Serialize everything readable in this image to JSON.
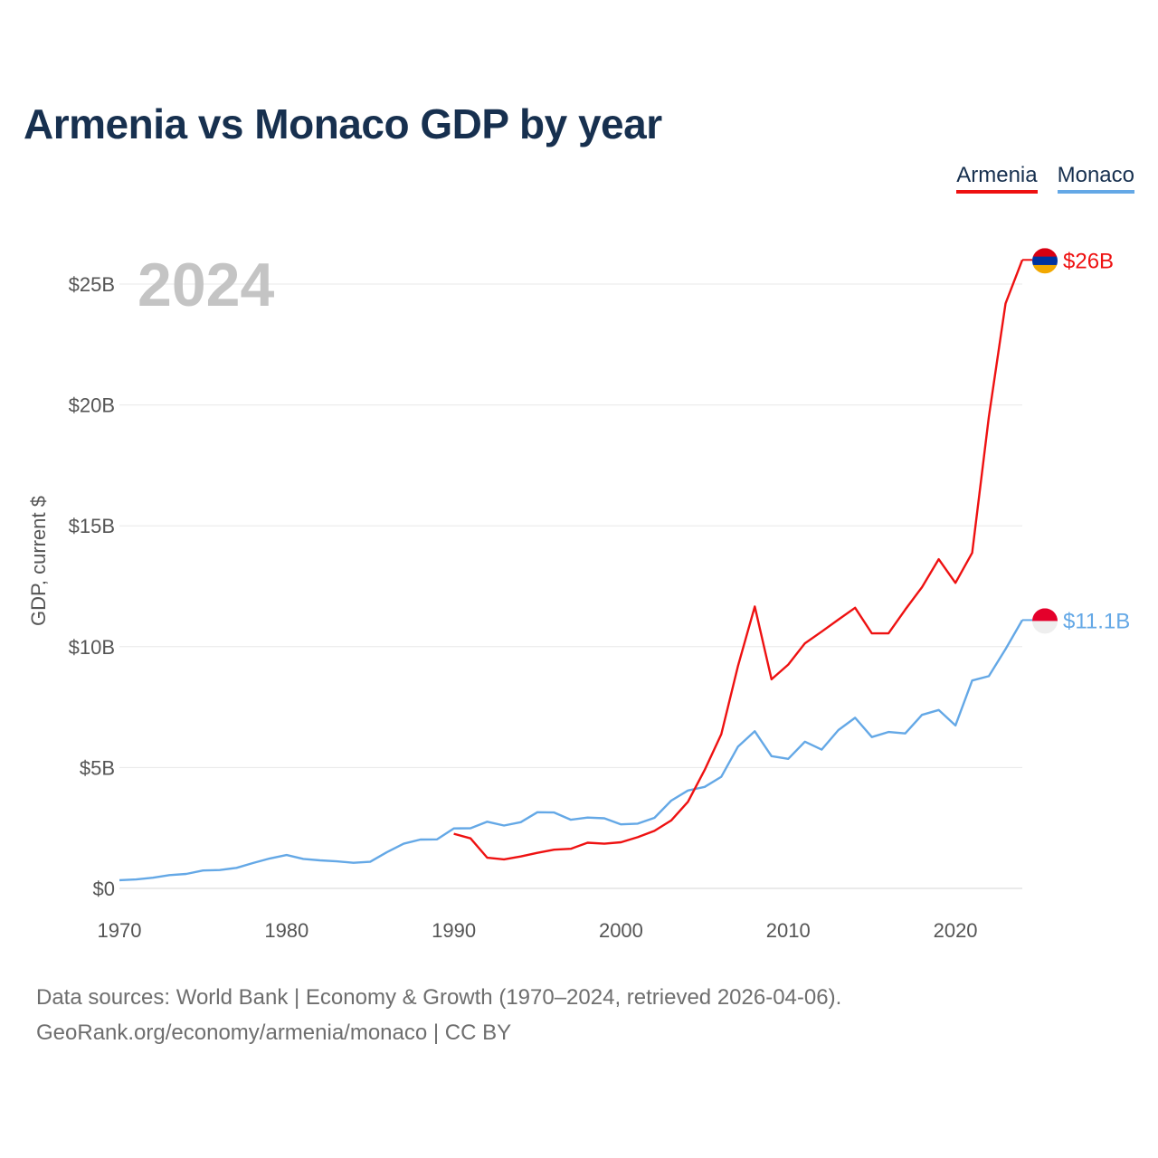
{
  "chart_data": {
    "type": "line",
    "title": "Armenia vs Monaco GDP by year",
    "xlabel": "",
    "ylabel": "GDP, current $",
    "xlim": [
      1970,
      2024
    ],
    "ylim": [
      0,
      26
    ],
    "x_ticks": [
      1970,
      1980,
      1990,
      2000,
      2010,
      2020
    ],
    "x_tick_labels": [
      "1970",
      "1980",
      "1990",
      "2000",
      "2010",
      "2020"
    ],
    "y_ticks": [
      0,
      5,
      10,
      15,
      20,
      25
    ],
    "y_tick_labels": [
      "$0",
      "$5B",
      "$10B",
      "$15B",
      "$20B",
      "$25B"
    ],
    "year_display": "2024",
    "legend_position": "top-right",
    "series": [
      {
        "name": "Armenia",
        "color": "#ee1111",
        "end_label": "$26B",
        "flag": "armenia-flag-icon",
        "flag_colors": [
          "#d90012",
          "#0033a0",
          "#f2a800"
        ],
        "x": [
          1990,
          1991,
          1992,
          1993,
          1994,
          1995,
          1996,
          1997,
          1998,
          1999,
          2000,
          2001,
          2002,
          2003,
          2004,
          2005,
          2006,
          2007,
          2008,
          2009,
          2010,
          2011,
          2012,
          2013,
          2014,
          2015,
          2016,
          2017,
          2018,
          2019,
          2020,
          2021,
          2022,
          2023,
          2024
        ],
        "values": [
          2.26,
          2.07,
          1.27,
          1.2,
          1.32,
          1.47,
          1.6,
          1.64,
          1.89,
          1.85,
          1.91,
          2.12,
          2.38,
          2.81,
          3.58,
          4.9,
          6.38,
          9.21,
          11.66,
          8.65,
          9.26,
          10.14,
          10.62,
          11.12,
          11.61,
          10.55,
          10.55,
          11.53,
          12.46,
          13.62,
          12.64,
          13.88,
          19.5,
          24.2,
          26.0
        ]
      },
      {
        "name": "Monaco",
        "color": "#64a8e6",
        "end_label": "$11.1B",
        "flag": "monaco-flag-icon",
        "flag_colors": [
          "#e4002b",
          "#eeeeee"
        ],
        "x": [
          1970,
          1971,
          1972,
          1973,
          1974,
          1975,
          1976,
          1977,
          1978,
          1979,
          1980,
          1981,
          1982,
          1983,
          1984,
          1985,
          1986,
          1987,
          1988,
          1989,
          1990,
          1991,
          1992,
          1993,
          1994,
          1995,
          1996,
          1997,
          1998,
          1999,
          2000,
          2001,
          2002,
          2003,
          2004,
          2005,
          2006,
          2007,
          2008,
          2009,
          2010,
          2011,
          2012,
          2013,
          2014,
          2015,
          2016,
          2017,
          2018,
          2019,
          2020,
          2021,
          2022,
          2023,
          2024
        ],
        "values": [
          0.34,
          0.37,
          0.44,
          0.55,
          0.6,
          0.74,
          0.76,
          0.85,
          1.05,
          1.24,
          1.38,
          1.22,
          1.16,
          1.12,
          1.06,
          1.1,
          1.5,
          1.85,
          2.02,
          2.03,
          2.48,
          2.49,
          2.76,
          2.6,
          2.74,
          3.15,
          3.14,
          2.84,
          2.93,
          2.9,
          2.65,
          2.68,
          2.92,
          3.63,
          4.05,
          4.2,
          4.62,
          5.87,
          6.5,
          5.47,
          5.36,
          6.07,
          5.74,
          6.55,
          7.06,
          6.26,
          6.47,
          6.41,
          7.18,
          7.38,
          6.74,
          8.6,
          8.78,
          9.9,
          11.1
        ]
      }
    ]
  },
  "footer": {
    "line1": "Data sources: World Bank | Economy & Growth (1970–2024, retrieved 2026-04-06).",
    "line2": "GeoRank.org/economy/armenia/monaco | CC BY"
  }
}
